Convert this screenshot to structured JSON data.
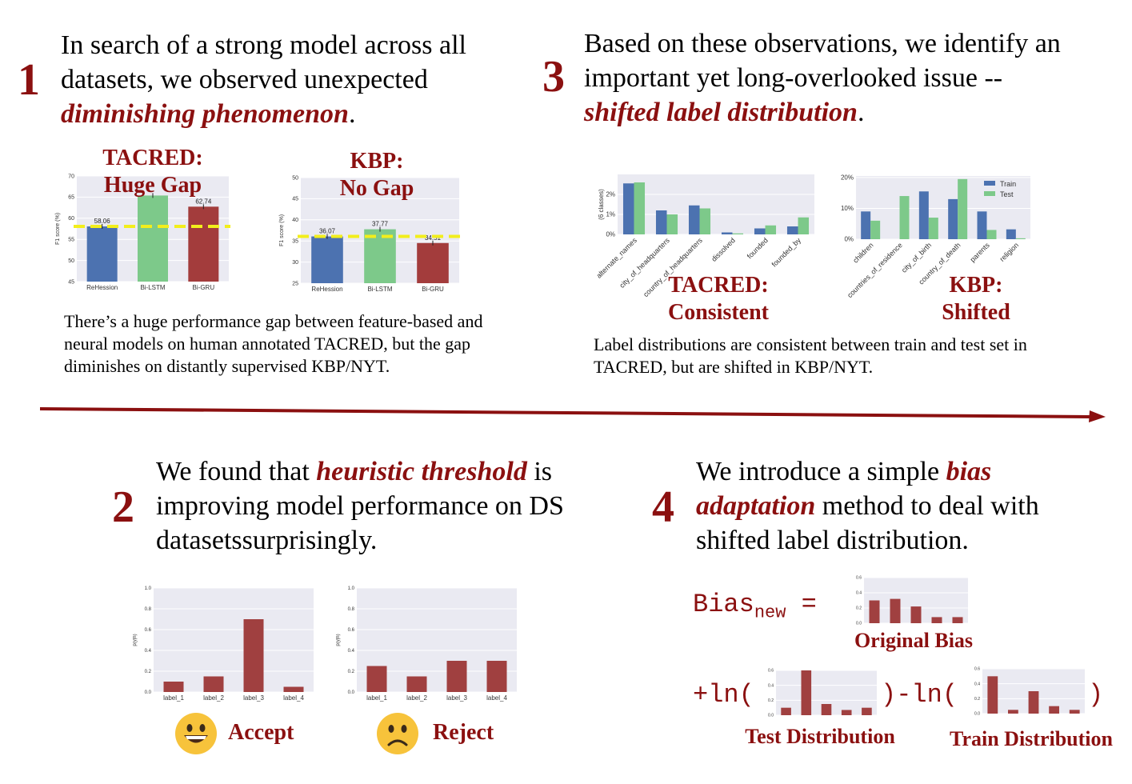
{
  "steps": {
    "s1": {
      "num": "1",
      "pre": "In search of a strong model across all datasets, we observed unexpected ",
      "hl": "diminishing phenomenon",
      "post": "."
    },
    "s2": {
      "num": "2",
      "pre": "We found that ",
      "hl": "heuristic threshold",
      "post": " is improving model performance on DS datasetssurprisingly."
    },
    "s3": {
      "num": "3",
      "pre": "Based on these observations, we identify an important yet long-overlooked issue -- ",
      "hl": "shifted label distribution",
      "post": "."
    },
    "s4": {
      "num": "4",
      "pre": "We introduce a simple ",
      "hl": "bias adaptation",
      "post": " method to deal with shifted label distribution."
    }
  },
  "captions": {
    "c1": "There’s a huge performance gap between feature-based and neural models on human annotated TACRED, but the gap diminishes on distantly supervised KBP/NYT.",
    "c3": "Label distributions are consistent between train and test set in TACRED, but are shifted in KBP/NYT."
  },
  "labels": {
    "tacred_gap_1": "TACRED:",
    "tacred_gap_2": "Huge Gap",
    "kbp_gap_1": "KBP:",
    "kbp_gap_2": "No Gap",
    "tacred_dist_1": "TACRED:",
    "tacred_dist_2": "Consistent",
    "kbp_dist_1": "KBP:",
    "kbp_dist_2": "Shifted",
    "accept": "Accept",
    "reject": "Reject",
    "original_bias": "Original Bias",
    "test_distribution": "Test Distribution",
    "train_distribution": "Train Distribution"
  },
  "formula": {
    "bias": "Bias",
    "sub": "new",
    "eq": " =",
    "plus_ln": "+ln(",
    "close_minus_ln": ")-ln(",
    "close": ")"
  },
  "icons": {
    "accept": "grinning-face-icon",
    "reject": "frowning-face-icon",
    "arrow": "timeline-arrow-icon"
  },
  "colors": {
    "accent": "#8b1010",
    "blue": "#4c72b0",
    "green": "#7dc98a",
    "red": "#a33c3c",
    "bar": "#a04040",
    "yellow": "#f2ee1c",
    "grid": "#eaeaf2"
  },
  "chart_data": [
    {
      "id": "tacred_f1",
      "type": "bar",
      "categories": [
        "ReHession",
        "Bi-LSTM",
        "Bi-GRU"
      ],
      "values": [
        58.06,
        65.38,
        62.74
      ],
      "value_labels": [
        "58.06",
        "",
        "62.74"
      ],
      "ylabel": "F1 score (%)",
      "ylim": [
        45,
        70
      ],
      "yticks": [
        "45",
        "50",
        "55",
        "60",
        "65",
        "70"
      ],
      "bar_colors": [
        "#4c72b0",
        "#7dc98a",
        "#a33c3c"
      ],
      "threshold": 58.06
    },
    {
      "id": "kbp_f1",
      "type": "bar",
      "categories": [
        "ReHession",
        "Bi-LSTM",
        "Bi-GRU"
      ],
      "values": [
        36.07,
        37.77,
        34.51
      ],
      "value_labels": [
        "36.07",
        "37.77",
        "34.51"
      ],
      "ylabel": "F1 score (%)",
      "ylim": [
        25,
        50
      ],
      "yticks": [
        "25",
        "30",
        "35",
        "40",
        "45",
        "50"
      ],
      "bar_colors": [
        "#4c72b0",
        "#7dc98a",
        "#a33c3c"
      ],
      "threshold": 36.07
    },
    {
      "id": "tacred_dist",
      "type": "bar",
      "categories": [
        "alternate_names",
        "city_of_headquarters",
        "country_of_headquarters",
        "dissolved",
        "founded",
        "founded_by"
      ],
      "series": [
        {
          "name": "Train",
          "values": [
            2.55,
            1.2,
            1.45,
            0.1,
            0.3,
            0.4
          ]
        },
        {
          "name": "Test",
          "values": [
            2.6,
            1.0,
            1.3,
            0.05,
            0.45,
            0.85
          ]
        }
      ],
      "ylabel": "(6 classes)",
      "ylim": [
        0,
        3
      ],
      "yticks": [
        "0%",
        "1%",
        "2%"
      ]
    },
    {
      "id": "kbp_dist",
      "type": "bar",
      "categories": [
        "children",
        "countries_of_residence",
        "city_of_birth",
        "country_of_death",
        "parents",
        "religion"
      ],
      "series": [
        {
          "name": "Train",
          "values": [
            9,
            0,
            15.5,
            13,
            9,
            3.2
          ]
        },
        {
          "name": "Test",
          "values": [
            6,
            14,
            7,
            19.5,
            3,
            0.3
          ]
        }
      ],
      "ylim": [
        0,
        20.5
      ],
      "yticks": [
        "0%",
        "10%",
        "20%"
      ],
      "legend": "top-right"
    },
    {
      "id": "accept",
      "type": "bar",
      "categories": [
        "label_1",
        "label_2",
        "label_3",
        "label_4"
      ],
      "values": [
        0.1,
        0.15,
        0.7,
        0.05
      ],
      "ylabel": "p(y|h)",
      "ylim": [
        0,
        1
      ],
      "yticks": [
        "0.0",
        "0.2",
        "0.4",
        "0.6",
        "0.8",
        "1.0"
      ]
    },
    {
      "id": "reject",
      "type": "bar",
      "categories": [
        "label_1",
        "label_2",
        "label_3",
        "label_4"
      ],
      "values": [
        0.25,
        0.15,
        0.3,
        0.3
      ],
      "ylabel": "p(y|h)",
      "ylim": [
        0,
        1
      ],
      "yticks": [
        "0.0",
        "0.2",
        "0.4",
        "0.6",
        "0.8",
        "1.0"
      ]
    },
    {
      "id": "orig_bias",
      "type": "bar",
      "categories": [
        "",
        "",
        "",
        "",
        ""
      ],
      "values": [
        0.3,
        0.32,
        0.22,
        0.08,
        0.08
      ],
      "ylim": [
        0,
        0.6
      ],
      "yticks": [
        "0.0",
        "0.2",
        "0.4",
        "0.6"
      ]
    },
    {
      "id": "test_dist",
      "type": "bar",
      "categories": [
        "",
        "",
        "",
        "",
        ""
      ],
      "values": [
        0.1,
        0.6,
        0.15,
        0.07,
        0.1
      ],
      "ylim": [
        0,
        0.6
      ],
      "yticks": [
        "0.0",
        "0.2",
        "0.4",
        "0.6"
      ]
    },
    {
      "id": "train_dist",
      "type": "bar",
      "categories": [
        "",
        "",
        "",
        "",
        ""
      ],
      "values": [
        0.5,
        0.05,
        0.3,
        0.1,
        0.05
      ],
      "ylim": [
        0,
        0.6
      ],
      "yticks": [
        "0.0",
        "0.2",
        "0.4",
        "0.6"
      ]
    }
  ]
}
